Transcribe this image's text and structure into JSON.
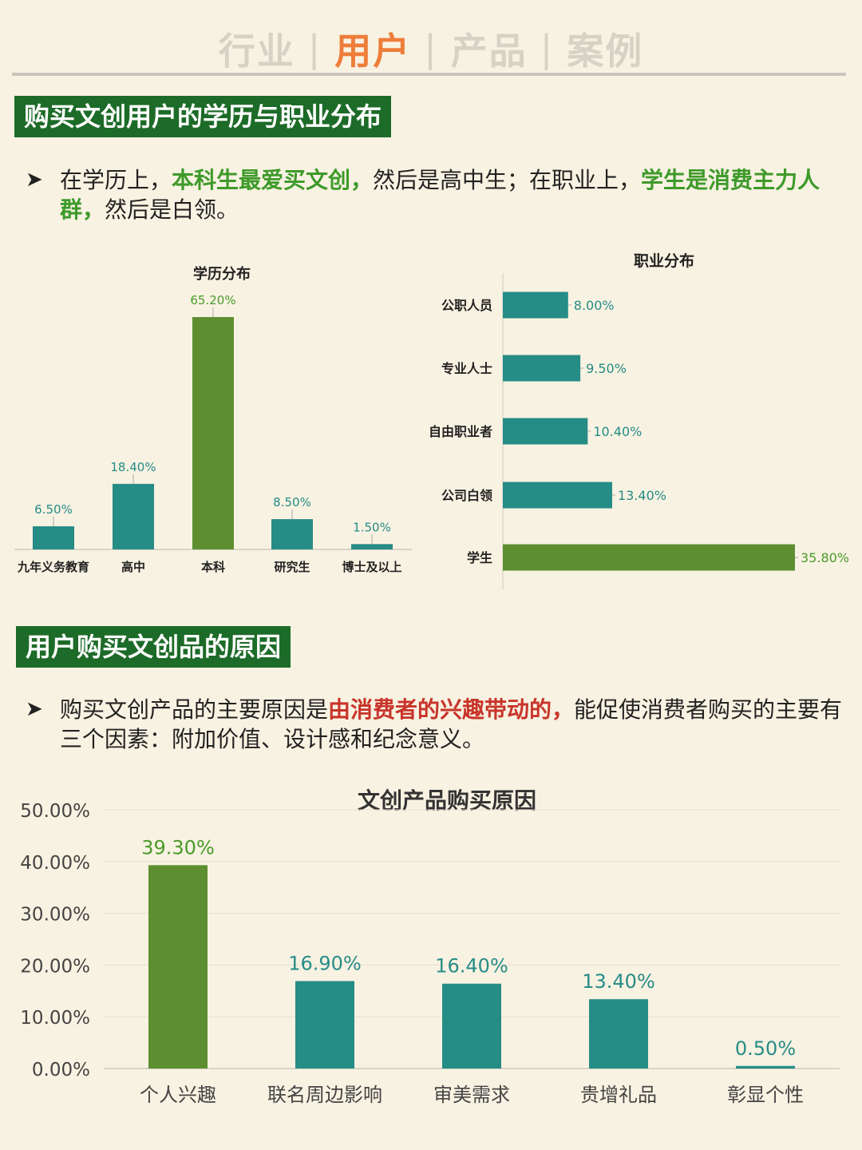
{
  "nav": {
    "items": [
      {
        "label": "行业",
        "active": false
      },
      {
        "label": "用户",
        "active": true
      },
      {
        "label": "产品",
        "active": false
      },
      {
        "label": "案例",
        "active": false
      }
    ],
    "separator": "|"
  },
  "section1": {
    "title": "购买文创用户的学历与职业分布",
    "bullet": {
      "arrow": "➤",
      "parts": [
        {
          "text": "在学历上，",
          "style": "normal"
        },
        {
          "text": "本科生最爱买文创，",
          "style": "green"
        },
        {
          "text": "然后是高中生；在职业上，",
          "style": "normal"
        },
        {
          "text": "学生是消费主力人群，",
          "style": "green"
        },
        {
          "text": "然后是白领。",
          "style": "normal"
        }
      ]
    }
  },
  "section2": {
    "title": "用户购买文创品的原因",
    "bullet": {
      "arrow": "➤",
      "parts": [
        {
          "text": "购买文创产品的主要原因是",
          "style": "normal"
        },
        {
          "text": "由消费者的兴趣带动的，",
          "style": "red"
        },
        {
          "text": "能促使消费者购买的主要有三个因素：附加价值、设计感和纪念意义。",
          "style": "normal"
        }
      ]
    }
  },
  "colors": {
    "green": "#5d8f31",
    "teal": "#268c86",
    "green_label": "#4a9a2a",
    "teal_label": "#268c86",
    "title_bg": "#1d6b28"
  },
  "chart_data": [
    {
      "type": "bar",
      "title": "学历分布",
      "categories": [
        "九年义务教育",
        "高中",
        "本科",
        "研究生",
        "博士及以上"
      ],
      "values": [
        6.5,
        18.4,
        65.2,
        8.5,
        1.5
      ],
      "labels": [
        "6.50%",
        "18.40%",
        "65.20%",
        "8.50%",
        "1.50%"
      ],
      "highlight": [
        false,
        false,
        true,
        false,
        false
      ],
      "ylim": [
        0,
        65.2
      ]
    },
    {
      "type": "bar",
      "orientation": "horizontal",
      "title": "职业分布",
      "categories": [
        "公职人员",
        "专业人士",
        "自由职业者",
        "公司白领",
        "学生"
      ],
      "values": [
        8.0,
        9.5,
        10.4,
        13.4,
        35.8
      ],
      "labels": [
        "8.00%",
        "9.50%",
        "10.40%",
        "13.40%",
        "35.80%"
      ],
      "highlight": [
        false,
        false,
        false,
        false,
        true
      ],
      "xlim": [
        0,
        35.8
      ]
    },
    {
      "type": "bar",
      "title": "文创产品购买原因",
      "categories": [
        "个人兴趣",
        "联名周边影响",
        "审美需求",
        "贵增礼品",
        "彰显个性"
      ],
      "values": [
        39.3,
        16.9,
        16.4,
        13.4,
        0.5
      ],
      "labels": [
        "39.30%",
        "16.90%",
        "16.40%",
        "13.40%",
        "0.50%"
      ],
      "highlight": [
        true,
        false,
        false,
        false,
        false
      ],
      "yticks": [
        "0.00%",
        "10.00%",
        "20.00%",
        "30.00%",
        "40.00%",
        "50.00%"
      ],
      "ylim": [
        0,
        50
      ],
      "grid": true
    }
  ]
}
